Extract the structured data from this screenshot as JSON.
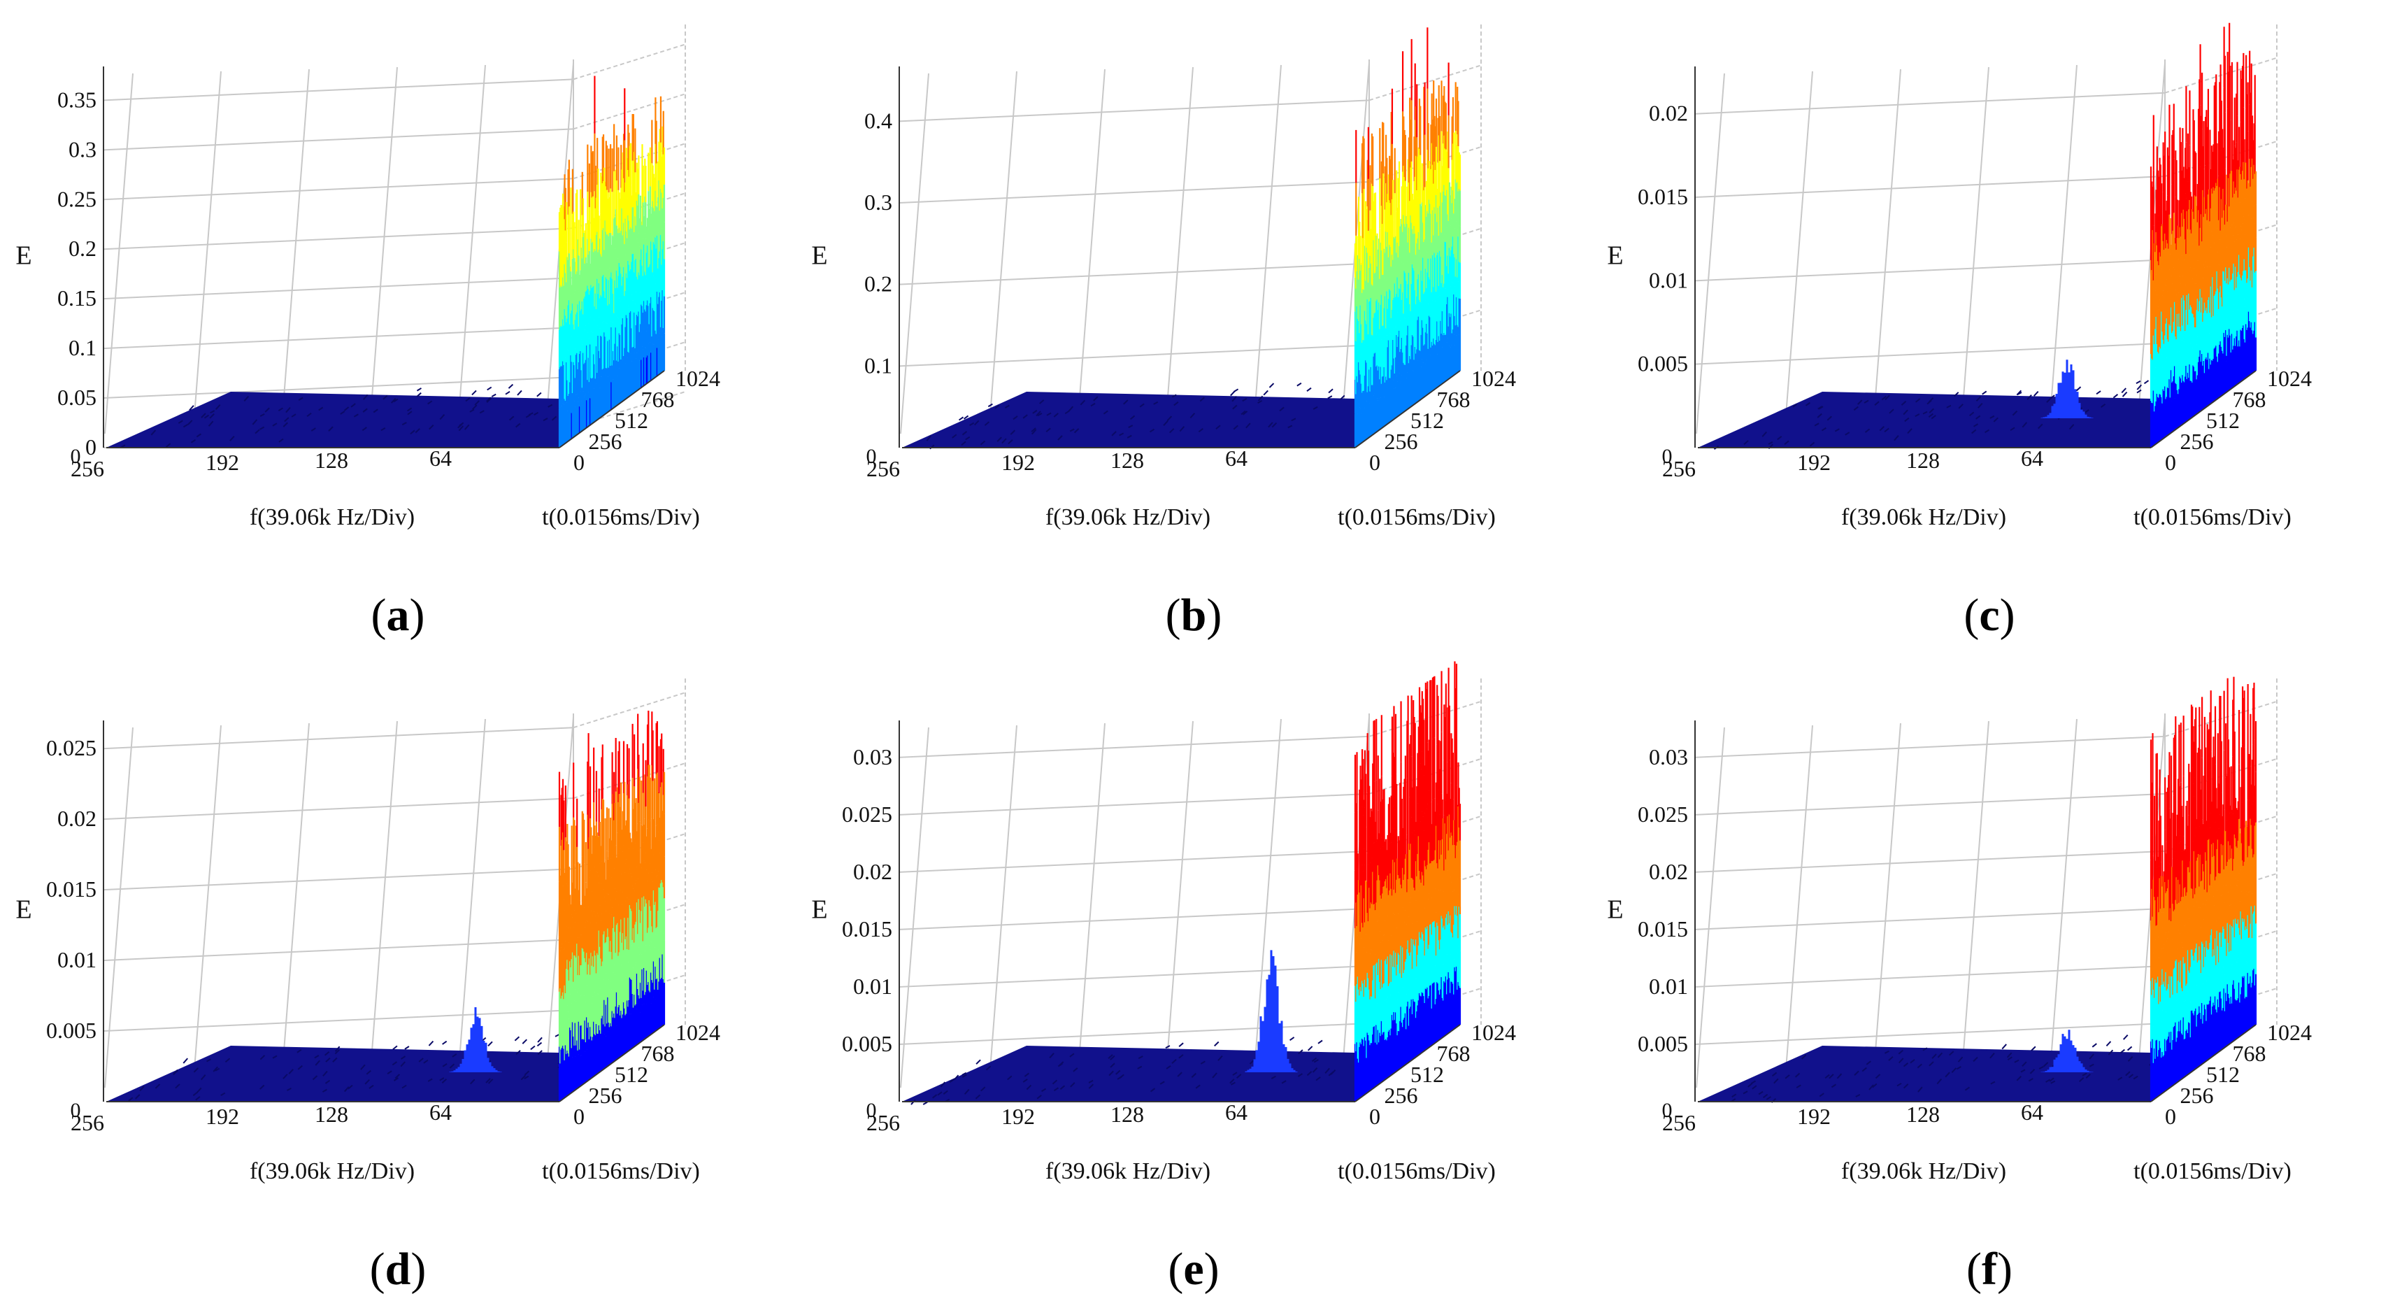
{
  "figure": {
    "colors": {
      "floor": "#11118c",
      "floor_dark": "#0a0a66",
      "grid": "#c8c8c8",
      "axis": "#333333",
      "colormap": [
        "#00008f",
        "#0000ff",
        "#0080ff",
        "#00ffff",
        "#80ff80",
        "#ffff00",
        "#ff8000",
        "#ff0000"
      ]
    }
  },
  "chart_data": [
    {
      "id": "a",
      "type": "surface",
      "caption_open": "(",
      "caption_letter": "a",
      "caption_close": ")",
      "zlabel": "E",
      "xlabel": "f(39.06k Hz/Div)",
      "ylabel": "t(0.0156ms/Div)",
      "x_ticks": [
        "256",
        "192",
        "128",
        "64"
      ],
      "t_ticks": [
        "0",
        "256",
        "512",
        "768",
        "1024"
      ],
      "z_ticks": [
        "0",
        "0.05",
        "0.1",
        "0.15",
        "0.2",
        "0.25",
        "0.3",
        "0.35"
      ],
      "z_values": [
        0,
        0.05,
        0.1,
        0.15,
        0.2,
        0.25,
        0.3,
        0.35
      ],
      "zlim": [
        0,
        0.37
      ],
      "low_freq_wall_mean": 0.22,
      "low_freq_wall_peak": 0.35,
      "wall_hue": "mixed",
      "side_peak": 0
    },
    {
      "id": "b",
      "type": "surface",
      "caption_open": "(",
      "caption_letter": "b",
      "caption_close": ")",
      "zlabel": "E",
      "xlabel": "f(39.06k Hz/Div)",
      "ylabel": "t(0.0156ms/Div)",
      "x_ticks": [
        "256",
        "192",
        "128",
        "64"
      ],
      "t_ticks": [
        "0",
        "256",
        "512",
        "768",
        "1024"
      ],
      "z_ticks": [
        "0.1",
        "0.2",
        "0.3",
        "0.4"
      ],
      "z_values": [
        0.1,
        0.2,
        0.3,
        0.4
      ],
      "zlim": [
        0,
        0.45
      ],
      "low_freq_wall_mean": 0.3,
      "low_freq_wall_peak": 0.45,
      "wall_hue": "mixed",
      "side_peak": 0
    },
    {
      "id": "c",
      "type": "surface",
      "caption_open": "(",
      "caption_letter": "c",
      "caption_close": ")",
      "zlabel": "E",
      "xlabel": "f(39.06k Hz/Div)",
      "ylabel": "t(0.0156ms/Div)",
      "x_ticks": [
        "256",
        "192",
        "128",
        "64"
      ],
      "t_ticks": [
        "0",
        "256",
        "512",
        "768",
        "1024"
      ],
      "z_ticks": [
        "0.005",
        "0.01",
        "0.015",
        "0.02"
      ],
      "z_values": [
        0.005,
        0.01,
        0.015,
        0.02
      ],
      "zlim": [
        0,
        0.022
      ],
      "low_freq_wall_mean": 0.016,
      "low_freq_wall_peak": 0.022,
      "wall_hue": "red",
      "side_peak": 0.004
    },
    {
      "id": "d",
      "type": "surface",
      "caption_open": "(",
      "caption_letter": "d",
      "caption_close": ")",
      "zlabel": "E",
      "xlabel": "f(39.06k Hz/Div)",
      "ylabel": "t(0.0156ms/Div)",
      "x_ticks": [
        "256",
        "192",
        "128",
        "64"
      ],
      "t_ticks": [
        "0",
        "256",
        "512",
        "768",
        "1024"
      ],
      "z_ticks": [
        "0.005",
        "0.01",
        "0.015",
        "0.02",
        "0.025"
      ],
      "z_values": [
        0.005,
        0.01,
        0.015,
        0.02,
        0.025
      ],
      "zlim": [
        0,
        0.026
      ],
      "low_freq_wall_mean": 0.018,
      "low_freq_wall_peak": 0.022,
      "wall_hue": "orange",
      "side_peak": 0.005
    },
    {
      "id": "e",
      "type": "surface",
      "caption_open": "(",
      "caption_letter": "e",
      "caption_close": ")",
      "zlabel": "E",
      "xlabel": "f(39.06k Hz/Div)",
      "ylabel": "t(0.0156ms/Div)",
      "x_ticks": [
        "256",
        "192",
        "128",
        "64"
      ],
      "t_ticks": [
        "0",
        "256",
        "512",
        "768",
        "1024"
      ],
      "z_ticks": [
        "0.005",
        "0.01",
        "0.015",
        "0.02",
        "0.025",
        "0.03"
      ],
      "z_values": [
        0.005,
        0.01,
        0.015,
        0.02,
        0.025,
        0.03
      ],
      "zlim": [
        0,
        0.032
      ],
      "low_freq_wall_mean": 0.026,
      "low_freq_wall_peak": 0.032,
      "wall_hue": "red",
      "side_peak": 0.012
    },
    {
      "id": "f",
      "type": "surface",
      "caption_open": "(",
      "caption_letter": "f",
      "caption_close": ")",
      "zlabel": "E",
      "xlabel": "f(39.06k Hz/Div)",
      "ylabel": "t(0.0156ms/Div)",
      "x_ticks": [
        "256",
        "192",
        "128",
        "64"
      ],
      "t_ticks": [
        "0",
        "256",
        "512",
        "768",
        "1024"
      ],
      "z_ticks": [
        "0.005",
        "0.01",
        "0.015",
        "0.02",
        "0.025",
        "0.03"
      ],
      "z_values": [
        0.005,
        0.01,
        0.015,
        0.02,
        0.025,
        0.03
      ],
      "zlim": [
        0,
        0.032
      ],
      "low_freq_wall_mean": 0.025,
      "low_freq_wall_peak": 0.032,
      "wall_hue": "red",
      "side_peak": 0.004
    }
  ]
}
